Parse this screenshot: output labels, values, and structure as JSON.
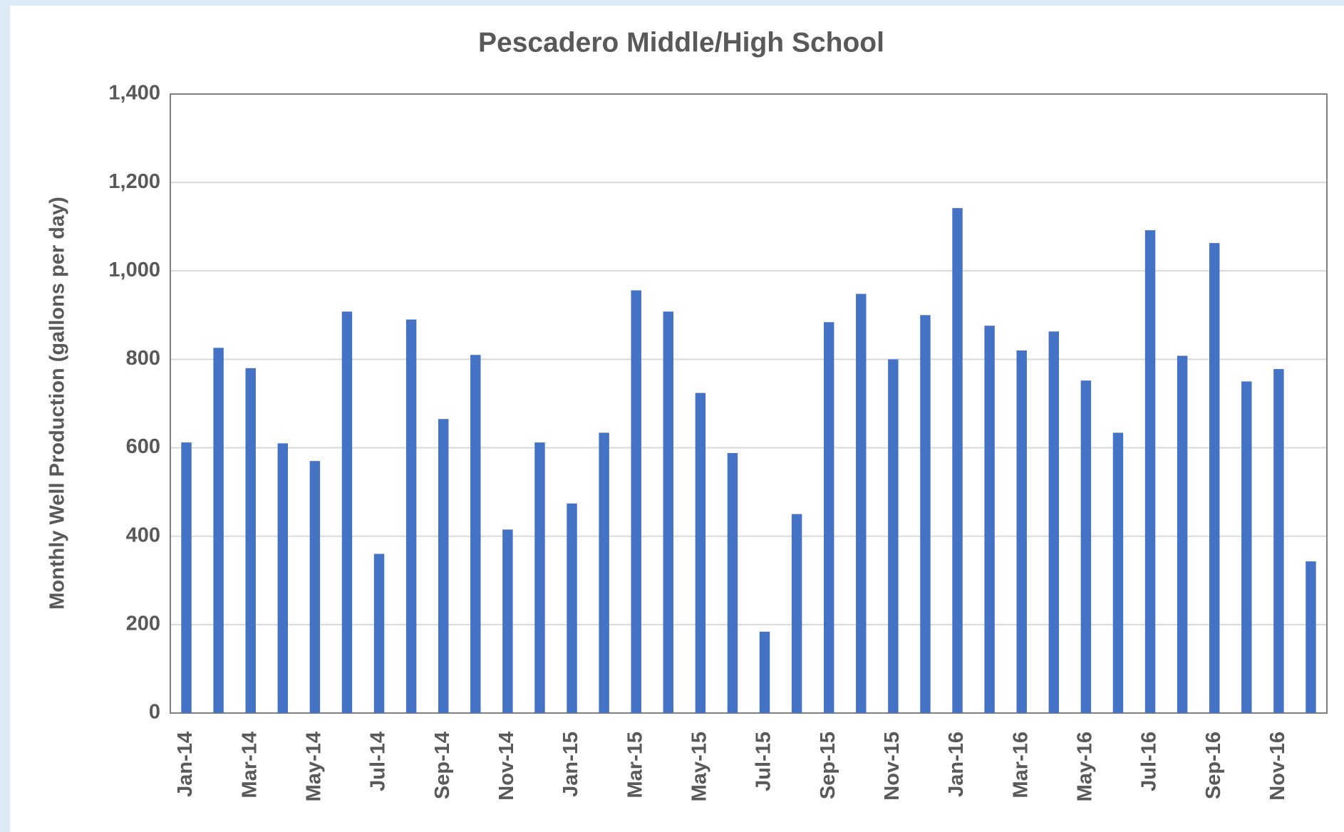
{
  "chart_data": {
    "type": "bar",
    "title": "Pescadero Middle/High School",
    "y_label": "Monthly Well Production (gallons per day)",
    "categories": [
      "Jan-14",
      null,
      "Mar-14",
      null,
      "May-14",
      null,
      "Jul-14",
      null,
      "Sep-14",
      null,
      "Nov-14",
      null,
      "Jan-15",
      null,
      "Mar-15",
      null,
      "May-15",
      null,
      "Jul-15",
      null,
      "Sep-15",
      null,
      "Nov-15",
      null,
      "Jan-16",
      null,
      "Mar-16",
      null,
      "May-16",
      null,
      "Jul-16",
      null,
      "Sep-16",
      null,
      "Nov-16",
      null
    ],
    "values": [
      612,
      826,
      780,
      610,
      570,
      908,
      360,
      890,
      665,
      810,
      415,
      612,
      474,
      634,
      956,
      908,
      724,
      588,
      184,
      450,
      884,
      948,
      800,
      900,
      1142,
      876,
      820,
      863,
      752,
      634,
      1092,
      808,
      1063,
      750,
      778,
      343
    ],
    "color": "#4472c4",
    "ylim": [
      0,
      1400
    ],
    "yticks": [
      0,
      200,
      400,
      600,
      800,
      {
        "value": 1000,
        "label": "1,000"
      },
      {
        "value": 1200,
        "label": "1,200"
      },
      {
        "value": 1400,
        "label": "1,400"
      }
    ],
    "grid": true
  }
}
